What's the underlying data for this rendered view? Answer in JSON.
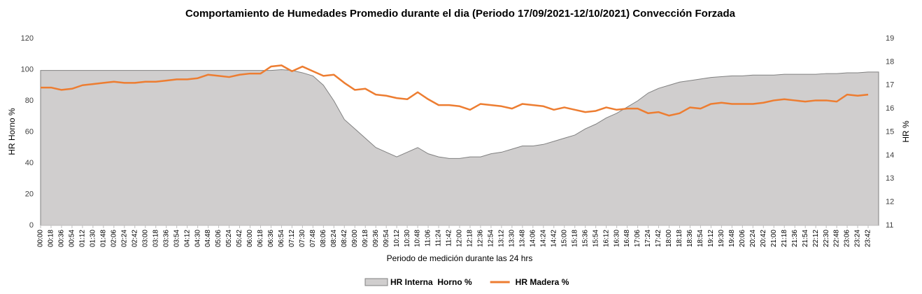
{
  "chart_data": {
    "type": "area-line",
    "title": "Comportamiento de Humedades Promedio durante el dia (Periodo 17/09/2021-12/10/2021) Convección Forzada",
    "x_label": "Periodo de medición durante las 24 hrs",
    "y_label": "HR Horno %",
    "y2_label": "HR %",
    "categories": [
      "00:00",
      "00:18",
      "00:36",
      "00:54",
      "01:12",
      "01:30",
      "01:48",
      "02:06",
      "02:24",
      "02:42",
      "03:00",
      "03:18",
      "03:36",
      "03:54",
      "04:12",
      "04:30",
      "04:48",
      "05:06",
      "05:24",
      "05:42",
      "06:00",
      "06:18",
      "06:36",
      "06:54",
      "07:12",
      "07:30",
      "07:48",
      "08:06",
      "08:24",
      "08:42",
      "09:00",
      "09:18",
      "09:36",
      "09:54",
      "10:12",
      "10:30",
      "10:48",
      "11:06",
      "11:24",
      "11:42",
      "12:00",
      "12:18",
      "12:36",
      "12:54",
      "13:12",
      "13:30",
      "13:48",
      "14:06",
      "14:24",
      "14:42",
      "15:00",
      "15:18",
      "15:36",
      "15:54",
      "16:12",
      "16:30",
      "16:48",
      "17:06",
      "17:24",
      "17:42",
      "18:00",
      "18:18",
      "18:36",
      "18:54",
      "19:12",
      "19:30",
      "19:48",
      "20:06",
      "20:24",
      "20:42",
      "21:00",
      "21:18",
      "21:36",
      "21:54",
      "22:12",
      "22:30",
      "22:48",
      "23:06",
      "23:24",
      "23:42"
    ],
    "series": [
      {
        "name": "HR Interna  Horno %",
        "type": "area",
        "color": "#d0cece",
        "line_color": "#808080",
        "values": [
          99.5,
          99.5,
          99.5,
          99.5,
          99.5,
          99.5,
          99.5,
          99.5,
          99.5,
          99.5,
          99.5,
          99.5,
          99.5,
          99.5,
          99.5,
          99.5,
          99.5,
          99.5,
          99.5,
          99.5,
          99.5,
          99.5,
          99.5,
          100,
          99.5,
          98,
          96,
          90,
          80,
          68,
          62,
          56,
          50,
          47,
          44,
          47,
          50,
          46,
          44,
          43,
          43,
          44,
          44,
          46,
          47,
          49,
          51,
          51,
          52,
          54,
          56,
          58,
          62,
          65,
          69,
          72,
          76,
          80,
          85,
          88,
          90,
          92,
          93,
          94,
          95,
          95.5,
          96,
          96,
          96.5,
          96.5,
          96.5,
          97,
          97,
          97,
          97,
          97.5,
          97.5,
          98,
          98,
          98.5
        ]
      },
      {
        "name": "HR Madera %",
        "type": "line",
        "axis": "y2",
        "color": "#ed7d31",
        "values": [
          16.9,
          16.9,
          16.8,
          16.85,
          17.0,
          17.05,
          17.1,
          17.15,
          17.1,
          17.1,
          17.15,
          17.15,
          17.2,
          17.25,
          17.25,
          17.3,
          17.45,
          17.4,
          17.35,
          17.45,
          17.5,
          17.5,
          17.8,
          17.85,
          17.6,
          17.8,
          17.6,
          17.4,
          17.45,
          17.1,
          16.8,
          16.85,
          16.6,
          16.55,
          16.45,
          16.4,
          16.7,
          16.4,
          16.15,
          16.15,
          16.1,
          15.95,
          16.2,
          16.15,
          16.1,
          16.0,
          16.2,
          16.15,
          16.1,
          15.95,
          16.05,
          15.95,
          15.85,
          15.9,
          16.05,
          15.95,
          16.0,
          16.0,
          15.8,
          15.85,
          15.7,
          15.8,
          16.05,
          16.0,
          16.2,
          16.25,
          16.2,
          16.2,
          16.2,
          16.25,
          16.35,
          16.4,
          16.35,
          16.3,
          16.35,
          16.35,
          16.3,
          16.6,
          16.55,
          16.6
        ]
      }
    ],
    "ylim": [
      0,
      120
    ],
    "yticks": [
      0,
      20,
      40,
      60,
      80,
      100,
      120
    ],
    "y2lim": [
      11,
      19
    ],
    "y2ticks": [
      11,
      12,
      13,
      14,
      15,
      16,
      17,
      18,
      19
    ],
    "grid": false,
    "legend": "bottom"
  }
}
